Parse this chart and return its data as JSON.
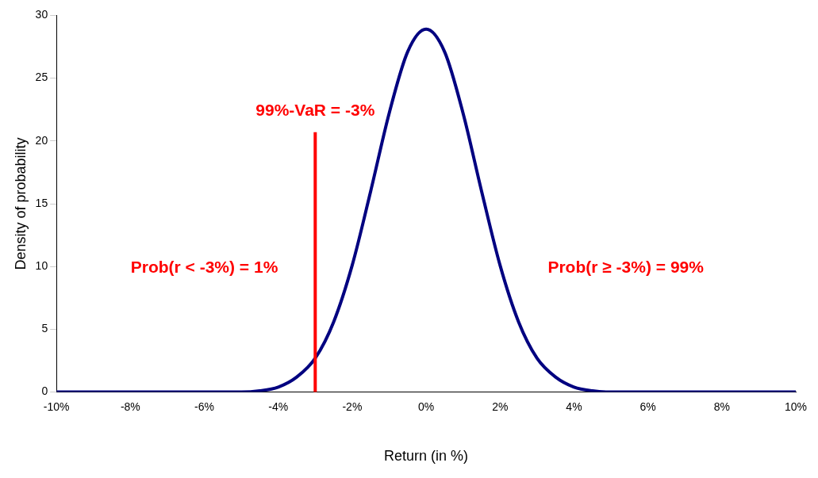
{
  "chart_data": {
    "type": "line",
    "xlabel": "Return (in %)",
    "ylabel": "Density of probability",
    "x": [
      -10,
      -6,
      -5.5,
      -5,
      -4.5,
      -4,
      -3.5,
      -3,
      -2.5,
      -2,
      -1.5,
      -1,
      -0.5,
      0,
      0.5,
      1,
      1.5,
      2,
      2.5,
      3,
      3.5,
      4,
      4.5,
      5,
      5.5,
      6,
      10
    ],
    "series": [
      {
        "color": "#000080",
        "values": [
          0,
          0,
          0,
          0,
          0.1,
          0.4,
          1.2,
          2.7,
          5.6,
          10.1,
          16.0,
          22.2,
          27.1,
          28.9,
          27.1,
          22.2,
          16.0,
          10.1,
          5.6,
          2.7,
          1.2,
          0.4,
          0.1,
          0,
          0,
          0,
          0
        ]
      }
    ],
    "xlim": [
      -10,
      10
    ],
    "xticks": [
      {
        "value": -10,
        "label": "-10%"
      },
      {
        "value": -8,
        "label": "-8%"
      },
      {
        "value": -6,
        "label": "-6%"
      },
      {
        "value": -4,
        "label": "-4%"
      },
      {
        "value": -2,
        "label": "-2%"
      },
      {
        "value": 0,
        "label": "0%"
      },
      {
        "value": 2,
        "label": "2%"
      },
      {
        "value": 4,
        "label": "4%"
      },
      {
        "value": 6,
        "label": "6%"
      },
      {
        "value": 8,
        "label": "8%"
      },
      {
        "value": 10,
        "label": "10%"
      }
    ],
    "ylim": [
      0,
      30
    ],
    "yticks": [
      0,
      5,
      10,
      15,
      20,
      25,
      30
    ],
    "grid": false,
    "marker": "none",
    "line_style": "solid",
    "ref_lines": [
      {
        "axis": "x",
        "value": -3,
        "label": "99%-VaR = -3%",
        "color": "#ff0000"
      }
    ],
    "annotations": [
      "Prob(r < -3%) = 1%",
      "Prob(r ≥ -3%) = 99%"
    ]
  }
}
